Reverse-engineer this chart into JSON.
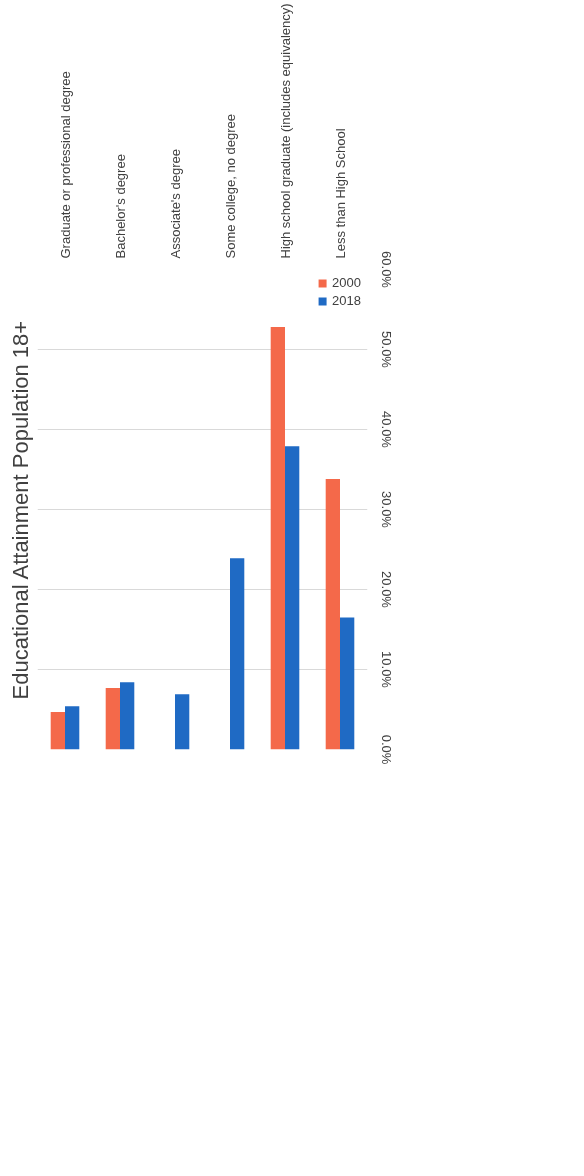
{
  "chart_data": {
    "type": "bar",
    "title": "Educational Attainment Population 18+",
    "categories": [
      "Graduate or professional degree",
      "Bachelor's degree",
      "Associate's degree",
      "Some college, no degree",
      "High school graduate (includes equivalency)",
      "Less than High School"
    ],
    "series": [
      {
        "name": "2000",
        "color": "#f4694a",
        "values": [
          4.7,
          7.7,
          null,
          null,
          52.8,
          33.8
        ]
      },
      {
        "name": "2018",
        "color": "#1f6ac4",
        "values": [
          5.4,
          8.4,
          6.9,
          23.9,
          37.9,
          16.5
        ]
      }
    ],
    "ylim": [
      0,
      60
    ],
    "yticks": [
      {
        "value": 0,
        "label": "0.0%"
      },
      {
        "value": 10,
        "label": "10.0%"
      },
      {
        "value": 20,
        "label": "20.0%"
      },
      {
        "value": 30,
        "label": "30.0%"
      },
      {
        "value": 40,
        "label": "40.0%"
      },
      {
        "value": 50,
        "label": "50.0%"
      },
      {
        "value": 60,
        "label": "60.0%"
      }
    ],
    "grid": "y",
    "legend": "top right"
  }
}
